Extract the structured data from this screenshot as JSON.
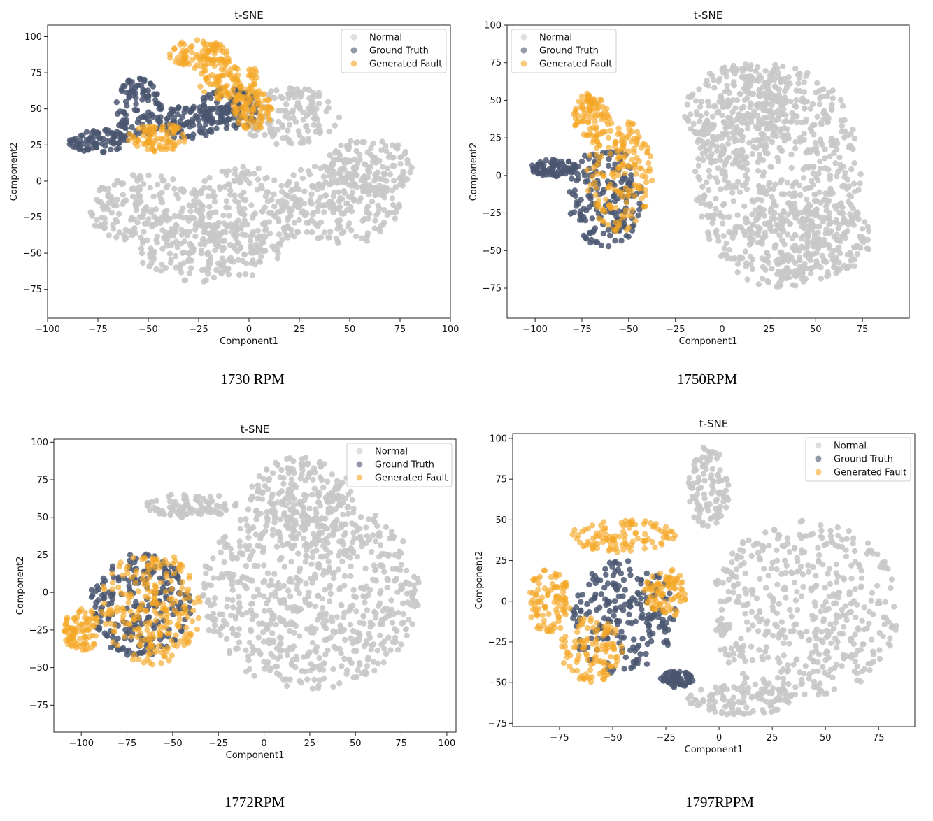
{
  "figure": {
    "captions": [
      "1730 RPM",
      "1750RPM",
      "1772RPM",
      "1797RPPM"
    ],
    "colors": {
      "normal": "#c8c8c8",
      "ground_truth": "#4a5670",
      "generated_fault": "#f5a623"
    }
  },
  "chart_data": [
    {
      "type": "scatter",
      "title": "t-SNE",
      "xlabel": "Component1",
      "ylabel": "Component2",
      "xlim": [
        -100,
        100
      ],
      "ylim": [
        -95,
        108
      ],
      "xticks": [
        -100,
        -75,
        -50,
        -25,
        0,
        25,
        50,
        75,
        100
      ],
      "yticks": [
        -75,
        -50,
        -25,
        0,
        25,
        50,
        75,
        100
      ],
      "legend": {
        "position": "top-right",
        "entries": [
          "Normal",
          "Ground Truth",
          "Generated Fault"
        ]
      },
      "series": [
        {
          "name": "Normal",
          "clusters": [
            [
              -50,
              -20,
              30,
              25
            ],
            [
              0,
              -20,
              30,
              30
            ],
            [
              45,
              -15,
              30,
              30
            ],
            [
              20,
              45,
              25,
              20
            ],
            [
              -20,
              -50,
              35,
              20
            ],
            [
              60,
              10,
              22,
              20
            ]
          ]
        },
        {
          "name": "Ground Truth",
          "clusters": [
            [
              -75,
              28,
              15,
              8
            ],
            [
              -55,
              50,
              12,
              22
            ],
            [
              -30,
              40,
              15,
              12
            ],
            [
              -10,
              50,
              15,
              15
            ]
          ]
        },
        {
          "name": "Generated Fault",
          "clusters": [
            [
              -25,
              88,
              15,
              10
            ],
            [
              -10,
              70,
              15,
              15
            ],
            [
              2,
              50,
              10,
              15
            ],
            [
              -45,
              30,
              15,
              10
            ]
          ]
        }
      ]
    },
    {
      "type": "scatter",
      "title": "t-SNE",
      "xlabel": "Component1",
      "ylabel": "Component2",
      "xlim": [
        -115,
        100
      ],
      "ylim": [
        -95,
        100
      ],
      "xticks": [
        -100,
        -75,
        -50,
        -25,
        0,
        25,
        50,
        75
      ],
      "yticks": [
        -75,
        -50,
        -25,
        0,
        25,
        50,
        75,
        100
      ],
      "legend": {
        "position": "top-left",
        "entries": [
          "Normal",
          "Ground Truth",
          "Generated Fault"
        ]
      },
      "series": [
        {
          "name": "Normal",
          "clusters": [
            [
              30,
              0,
              45,
              75
            ],
            [
              10,
              40,
              30,
              35
            ],
            [
              45,
              -40,
              35,
              30
            ]
          ]
        },
        {
          "name": "Ground Truth",
          "clusters": [
            [
              -62,
              -15,
              20,
              35
            ],
            [
              -90,
              5,
              12,
              6
            ]
          ]
        },
        {
          "name": "Generated Fault",
          "clusters": [
            [
              -70,
              40,
              10,
              15
            ],
            [
              -55,
              0,
              18,
              38
            ]
          ]
        }
      ]
    },
    {
      "type": "scatter",
      "title": "t-SNE",
      "xlabel": "Component1",
      "ylabel": "Component2",
      "xlim": [
        -115,
        105
      ],
      "ylim": [
        -93,
        102
      ],
      "xticks": [
        -100,
        -75,
        -50,
        -25,
        0,
        25,
        50,
        75,
        100
      ],
      "yticks": [
        -75,
        -50,
        -25,
        0,
        25,
        50,
        75,
        100
      ],
      "legend": {
        "position": "top-right",
        "entries": [
          "Normal",
          "Ground Truth",
          "Generated Fault"
        ]
      },
      "series": [
        {
          "name": "Normal",
          "clusters": [
            [
              25,
              0,
              60,
              65
            ],
            [
              -40,
              58,
              25,
              8
            ],
            [
              20,
              60,
              30,
              30
            ]
          ]
        },
        {
          "name": "Ground Truth",
          "clusters": [
            [
              -68,
              -8,
              28,
              35
            ]
          ]
        },
        {
          "name": "Generated Fault",
          "clusters": [
            [
              -100,
              -25,
              10,
              15
            ],
            [
              -62,
              -10,
              28,
              38
            ]
          ]
        }
      ]
    },
    {
      "type": "scatter",
      "title": "t-SNE",
      "xlabel": "Component1",
      "ylabel": "Component2",
      "xlim": [
        -97,
        92
      ],
      "ylim": [
        -77,
        103
      ],
      "xticks": [
        -75,
        -50,
        -25,
        0,
        25,
        50,
        75
      ],
      "yticks": [
        -75,
        -50,
        -25,
        0,
        25,
        50,
        75,
        100
      ],
      "legend": {
        "position": "top-right",
        "entries": [
          "Normal",
          "Ground Truth",
          "Generated Fault"
        ]
      },
      "series": [
        {
          "name": "Normal",
          "clusters": [
            [
              40,
              -5,
              45,
              55
            ],
            [
              -5,
              70,
              10,
              25
            ],
            [
              10,
              -60,
              25,
              10
            ]
          ]
        },
        {
          "name": "Ground Truth",
          "clusters": [
            [
              -45,
              -10,
              25,
              35
            ],
            [
              -20,
              -48,
              8,
              5
            ]
          ]
        },
        {
          "name": "Generated Fault",
          "clusters": [
            [
              -45,
              40,
              25,
              10
            ],
            [
              -80,
              0,
              10,
              20
            ],
            [
              -25,
              5,
              10,
              15
            ],
            [
              -60,
              -30,
              15,
              20
            ]
          ]
        }
      ]
    }
  ]
}
